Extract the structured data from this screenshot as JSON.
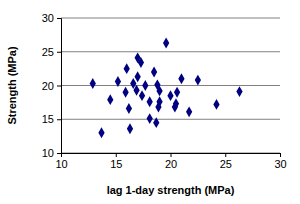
{
  "chart_data": {
    "type": "scatter",
    "x_label": "lag 1-day strength (MPa)",
    "y_label": "Strength (MPa)",
    "x": [
      12.9,
      13.7,
      14.5,
      15.2,
      15.9,
      16.0,
      16.2,
      16.3,
      16.6,
      16.9,
      17.0,
      17.0,
      17.3,
      17.4,
      17.7,
      18.1,
      18.1,
      18.5,
      18.7,
      18.8,
      18.9,
      19.0,
      19.0,
      19.6,
      20.0,
      20.4,
      20.5,
      20.6,
      21.0,
      21.7,
      22.5,
      24.2,
      26.3
    ],
    "y": [
      20.3,
      13.0,
      17.9,
      20.6,
      19.0,
      22.5,
      16.6,
      13.6,
      20.3,
      19.3,
      24.1,
      21.3,
      23.4,
      18.5,
      20.0,
      17.6,
      15.1,
      22.0,
      14.5,
      20.1,
      16.8,
      17.6,
      19.2,
      26.3,
      18.5,
      16.8,
      17.3,
      19.0,
      21.0,
      16.1,
      20.8,
      17.2,
      19.1
    ],
    "color": "#000080",
    "marker": "diamond",
    "xlim": [
      10,
      30
    ],
    "xticks": [
      10,
      15,
      20,
      25,
      30
    ],
    "ylim": [
      10,
      30
    ],
    "yticks": [
      10,
      15,
      20,
      25,
      30
    ],
    "grid": true
  }
}
